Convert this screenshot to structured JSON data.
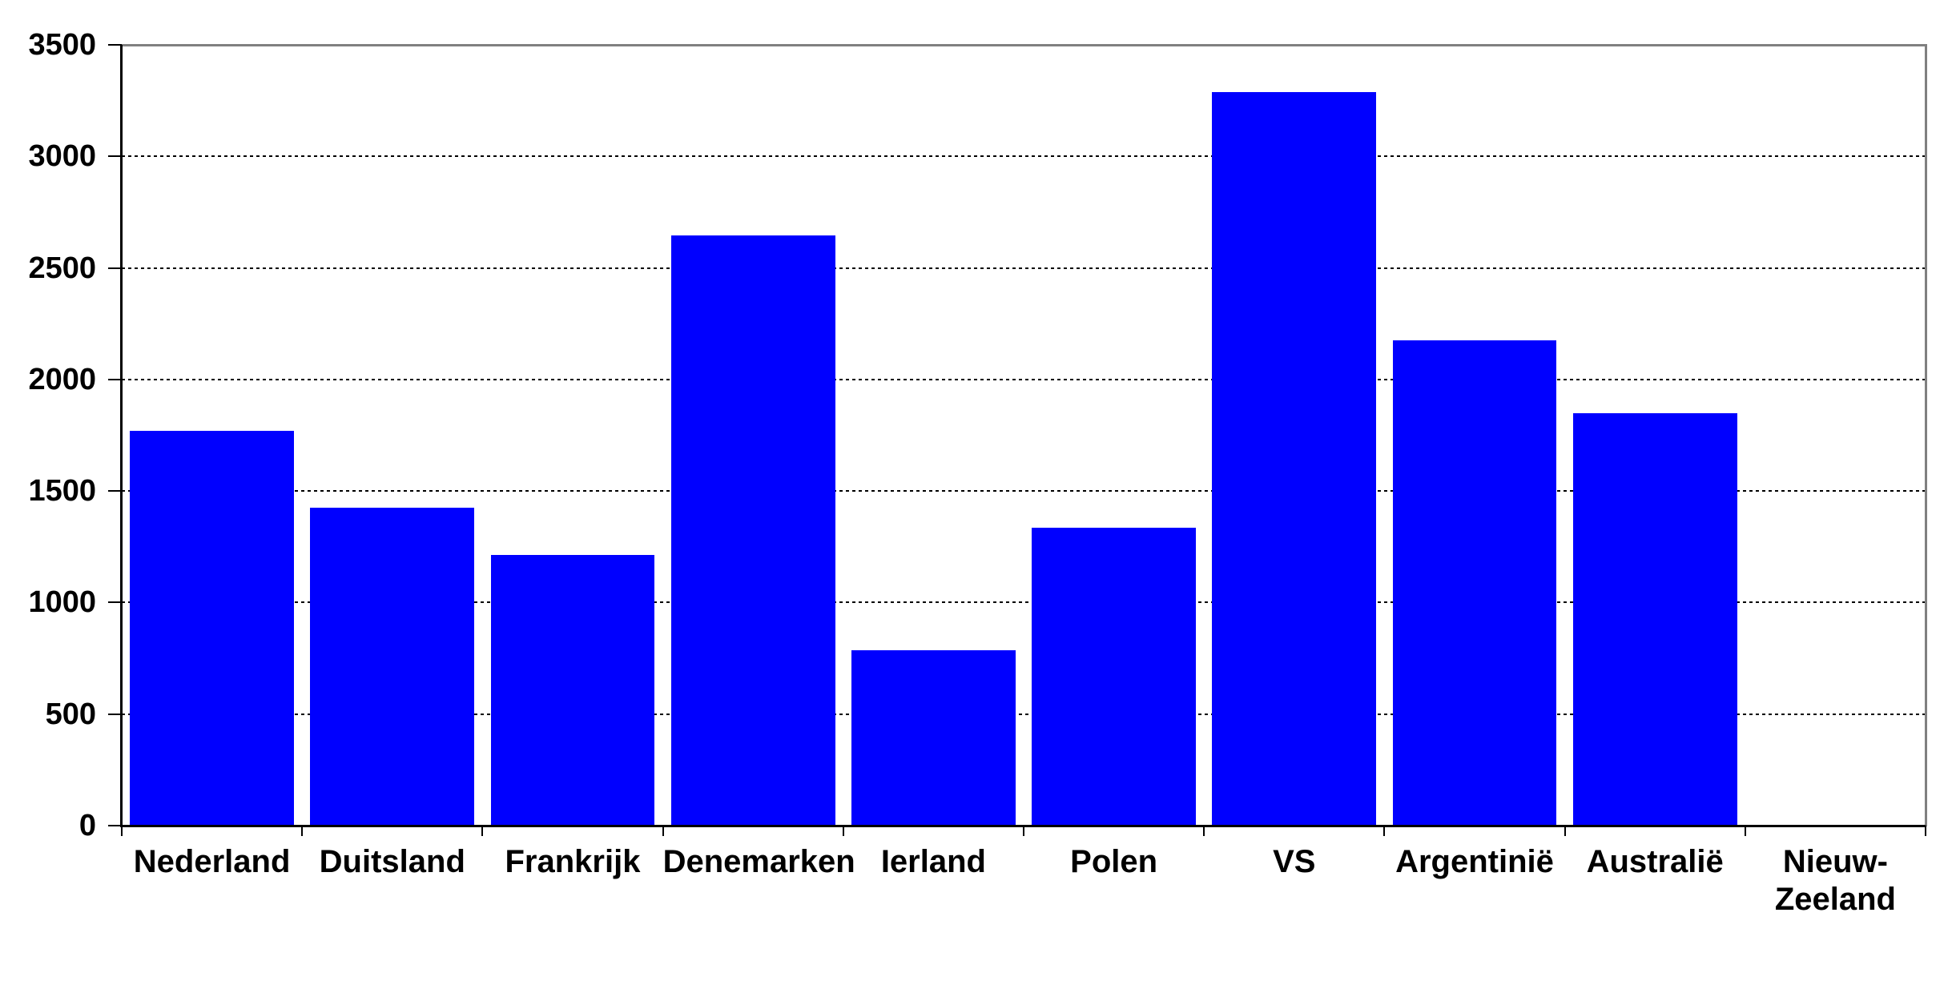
{
  "chart_data": {
    "type": "bar",
    "categories": [
      "Nederland",
      "Duitsland",
      "Frankrijk",
      "Denemarken",
      "Ierland",
      "Polen",
      "VS",
      "Argentinië",
      "Australië",
      "Nieuw-Zeeland"
    ],
    "categories_display": [
      "Nederland",
      "Duitsland",
      "Frankrijk",
      "Denemarken",
      "Ierland",
      "Polen",
      "VS",
      "Argentinië",
      "Australië",
      "Nieuw-\nZeeland"
    ],
    "values": [
      1770,
      1425,
      1215,
      2645,
      785,
      1335,
      3290,
      2175,
      1850,
      0
    ],
    "title": "",
    "xlabel": "",
    "ylabel": "",
    "ylim": [
      0,
      3500
    ],
    "ytick_step": 500,
    "ytick_labels": [
      "0",
      "500",
      "1000",
      "1500",
      "2000",
      "2500",
      "3000",
      "3500"
    ],
    "grid": true,
    "gridline_style": "dashed",
    "legend": false,
    "bar_color": "#0000ff"
  },
  "colors": {
    "bar": "#0000ff",
    "plot_border_gray": "#808080",
    "axis_black": "#000000",
    "gridline": "#000000",
    "background": "#ffffff",
    "label_text": "#000000"
  }
}
